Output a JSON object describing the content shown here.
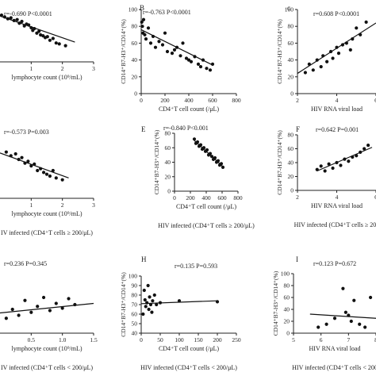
{
  "colors": {
    "axis": "#222222",
    "point": "#111111",
    "line": "#111111"
  },
  "chart_data": [
    {
      "id": "A",
      "letter": "",
      "type": "scatter",
      "stat": "r=-0.690 P<0.0001",
      "xlabel": "lymphocyte count (10⁹/mL)",
      "ylabel": "",
      "caption": "",
      "xlim": [
        0,
        3
      ],
      "ylim": [
        20,
        80
      ],
      "xticks": [
        "1",
        "2",
        "3"
      ],
      "yticks": [],
      "x": [
        0.05,
        0.15,
        0.25,
        0.35,
        0.45,
        0.55,
        0.62,
        0.7,
        0.78,
        0.85,
        0.92,
        1.0,
        1.05,
        1.1,
        1.18,
        1.25,
        1.3,
        1.38,
        1.45,
        1.52,
        1.6,
        1.7,
        1.8,
        1.9,
        2.1
      ],
      "y": [
        72,
        70,
        68,
        69,
        66,
        67,
        63,
        65,
        60,
        62,
        61,
        58,
        55,
        57,
        52,
        54,
        50,
        49,
        47,
        48,
        44,
        46,
        41,
        40,
        38
      ],
      "fit": [
        [
          0,
          71
        ],
        [
          2.4,
          42
        ]
      ]
    },
    {
      "id": "B",
      "letter": "B",
      "type": "scatter",
      "stat": "r=-0.763 P<0.0001",
      "xlabel": "CD4⁺T cell count (/μL)",
      "ylabel": "CD14⁺B7-H3⁺/CD14⁺(%)",
      "caption": "",
      "xlim": [
        0,
        800
      ],
      "ylim": [
        0,
        100
      ],
      "xticks": [
        "0",
        "200",
        "400",
        "600",
        "800"
      ],
      "yticks": [
        "0",
        "20",
        "40",
        "60",
        "80",
        "100"
      ],
      "x": [
        5,
        10,
        15,
        20,
        30,
        40,
        60,
        80,
        100,
        120,
        150,
        180,
        200,
        220,
        260,
        280,
        300,
        330,
        350,
        380,
        400,
        420,
        450,
        480,
        500,
        520,
        550,
        580,
        600
      ],
      "y": [
        85,
        80,
        72,
        88,
        70,
        65,
        78,
        60,
        68,
        55,
        62,
        58,
        72,
        50,
        48,
        52,
        55,
        45,
        60,
        42,
        40,
        38,
        44,
        35,
        32,
        40,
        30,
        28,
        35
      ],
      "fit": [
        [
          0,
          76
        ],
        [
          600,
          34
        ]
      ]
    },
    {
      "id": "C",
      "letter": "c",
      "type": "scatter",
      "stat": "r=0.608 P<0.0001",
      "xlabel": "HIV RNA viral load",
      "ylabel": "CD14⁺B7-H3⁺/CD14⁺(%)",
      "caption": "",
      "xlim": [
        2,
        6
      ],
      "ylim": [
        0,
        100
      ],
      "xticks": [
        "2",
        "4",
        "6"
      ],
      "yticks": [
        "0",
        "20",
        "40",
        "60",
        "80",
        "100"
      ],
      "x": [
        2.4,
        2.6,
        2.8,
        3.0,
        3.2,
        3.3,
        3.5,
        3.7,
        3.8,
        4.0,
        4.1,
        4.3,
        4.5,
        4.7,
        4.8,
        5.0,
        5.2,
        5.5
      ],
      "y": [
        25,
        35,
        28,
        40,
        32,
        45,
        38,
        50,
        42,
        55,
        48,
        58,
        60,
        52,
        65,
        78,
        70,
        85
      ],
      "fit": [
        [
          2,
          24
        ],
        [
          6,
          84
        ]
      ]
    },
    {
      "id": "D",
      "letter": "",
      "type": "scatter",
      "stat": "r=-0.573 P=0.003",
      "xlabel": "lymphocyte count (10⁹/mL)",
      "ylabel": "",
      "caption": "IV infected (CD4⁺T cells ≥ 200/μL)",
      "xlim": [
        0,
        3
      ],
      "ylim": [
        20,
        80
      ],
      "xticks": [
        "1",
        "2",
        "3"
      ],
      "yticks": [],
      "x": [
        0.2,
        0.35,
        0.5,
        0.6,
        0.7,
        0.8,
        0.9,
        1.0,
        1.1,
        1.2,
        1.3,
        1.4,
        1.5,
        1.6,
        1.7,
        1.8,
        2.0
      ],
      "y": [
        70,
        66,
        68,
        62,
        64,
        58,
        60,
        55,
        57,
        50,
        52,
        48,
        46,
        44,
        50,
        42,
        40
      ],
      "fit": [
        [
          0,
          69
        ],
        [
          2.2,
          42
        ]
      ]
    },
    {
      "id": "E",
      "letter": "E",
      "type": "scatter",
      "stat": "r=-0.840 P<0.001",
      "xlabel": "CD4⁺T cell count (/μL)",
      "ylabel": "CD14⁺B7-H3⁺/CD14⁺(%)",
      "caption": "HIV infected (CD4⁺T cells ≥ 200/μL)",
      "xlim": [
        0,
        800
      ],
      "ylim": [
        0,
        80
      ],
      "xticks": [
        "0",
        "200",
        "400",
        "600",
        "800"
      ],
      "yticks": [
        "0",
        "20",
        "40",
        "60",
        "80"
      ],
      "x": [
        250,
        270,
        290,
        310,
        330,
        350,
        370,
        390,
        410,
        430,
        450,
        470,
        490,
        510,
        530,
        550,
        570,
        590,
        610
      ],
      "y": [
        72,
        66,
        68,
        62,
        64,
        58,
        60,
        55,
        57,
        50,
        52,
        48,
        44,
        46,
        40,
        42,
        36,
        38,
        33
      ],
      "fit": [
        [
          250,
          70
        ],
        [
          620,
          33
        ]
      ]
    },
    {
      "id": "F",
      "letter": "F",
      "type": "scatter",
      "stat": "r=0.642 P=0.001",
      "xlabel": "HIV RNA viral load",
      "ylabel": "CD14⁺B7-H3⁺/CD14⁺(%)",
      "caption": "HIV infected (CD4⁺T cells ≥ 200",
      "xlim": [
        2,
        6
      ],
      "ylim": [
        0,
        80
      ],
      "xticks": [
        "2",
        "4",
        "6"
      ],
      "yticks": [
        "0",
        "20",
        "40",
        "60",
        "80"
      ],
      "x": [
        3.0,
        3.2,
        3.4,
        3.6,
        3.8,
        4.0,
        4.2,
        4.4,
        4.6,
        4.8,
        5.0,
        5.2,
        5.4,
        5.6
      ],
      "y": [
        30,
        35,
        28,
        38,
        32,
        40,
        36,
        45,
        42,
        48,
        50,
        55,
        60,
        65
      ],
      "fit": [
        [
          3,
          28
        ],
        [
          5.8,
          62
        ]
      ]
    },
    {
      "id": "G",
      "letter": "",
      "type": "scatter",
      "stat": "r=0.236 P=0.345",
      "xlabel": "lymphocyte count (10⁹/mL)",
      "ylabel": "",
      "caption": "IV infected (CD4⁺T cells < 200/μL)",
      "xlim": [
        0,
        1.5
      ],
      "ylim": [
        0,
        100
      ],
      "xticks": [
        "0.5",
        "1.0",
        "1.5"
      ],
      "yticks": [],
      "x": [
        0.1,
        0.2,
        0.3,
        0.4,
        0.5,
        0.6,
        0.7,
        0.8,
        0.9,
        1.0,
        1.1,
        1.2
      ],
      "y": [
        25,
        40,
        30,
        55,
        35,
        45,
        60,
        38,
        50,
        42,
        58,
        48
      ],
      "fit": [
        [
          0,
          34
        ],
        [
          1.5,
          50
        ]
      ]
    },
    {
      "id": "H",
      "letter": "H",
      "type": "scatter",
      "stat": "r=0.135 P=0.593",
      "xlabel": "CD4⁺T cell count (/μL)",
      "ylabel": "CD14⁺B7-H3⁺/CD14⁺(%)",
      "caption": "HIV infected (CD4⁺T cells < 200/μL)",
      "xlim": [
        0,
        250
      ],
      "ylim": [
        40,
        100
      ],
      "xticks": [
        "0",
        "50",
        "100",
        "150",
        "200",
        "250"
      ],
      "yticks": [
        "40",
        "50",
        "60",
        "70",
        "80",
        "90",
        "100"
      ],
      "x": [
        5,
        8,
        10,
        12,
        15,
        18,
        20,
        22,
        25,
        28,
        30,
        35,
        40,
        50,
        100,
        200
      ],
      "y": [
        60,
        85,
        75,
        68,
        72,
        90,
        65,
        78,
        70,
        62,
        74,
        80,
        70,
        72,
        74,
        73
      ],
      "fit": [
        [
          0,
          71
        ],
        [
          200,
          74
        ]
      ]
    },
    {
      "id": "I",
      "letter": "I",
      "type": "scatter",
      "stat": "r=0.123 P=0.672",
      "xlabel": "HIV RNA viral load",
      "ylabel": "CD14⁺B7-H3⁺/CD14⁺(%)",
      "caption": "HIV infected (CD4⁺T cells < 200",
      "xlim": [
        5,
        8
      ],
      "ylim": [
        0,
        100
      ],
      "xticks": [
        "5",
        "6",
        "7",
        "8"
      ],
      "yticks": [
        "0",
        "20",
        "40",
        "60",
        "80",
        "100"
      ],
      "x": [
        5.9,
        6.2,
        6.5,
        6.8,
        6.9,
        7.0,
        7.1,
        7.2,
        7.4,
        7.6,
        7.8
      ],
      "y": [
        10,
        15,
        25,
        75,
        35,
        30,
        20,
        55,
        15,
        10,
        60
      ],
      "fit": [
        [
          5.6,
          32
        ],
        [
          8,
          25
        ]
      ]
    }
  ]
}
